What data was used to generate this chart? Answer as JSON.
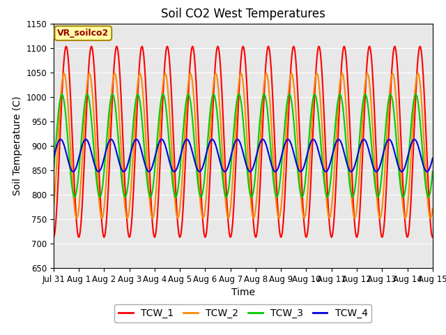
{
  "title": "Soil CO2 West Temperatures",
  "xlabel": "Time",
  "ylabel": "Soil Temperature (C)",
  "ylim": [
    650,
    1150
  ],
  "yticks": [
    650,
    700,
    750,
    800,
    850,
    900,
    950,
    1000,
    1050,
    1100,
    1150
  ],
  "x_tick_labels": [
    "Jul 31",
    "Aug 1",
    "Aug 2",
    "Aug 3",
    "Aug 4",
    "Aug 5",
    "Aug 6",
    "Aug 7",
    "Aug 8",
    "Aug 9",
    "Aug 10",
    "Aug 11",
    "Aug 12",
    "Aug 13",
    "Aug 14",
    "Aug 15"
  ],
  "series": [
    {
      "name": "TCW_1",
      "color": "#ff0000",
      "amplitude": 195,
      "mean": 908,
      "period": 1.0,
      "phase_deg": -90
    },
    {
      "name": "TCW_2",
      "color": "#ff8800",
      "amplitude": 148,
      "mean": 900,
      "period": 1.0,
      "phase_deg": -60
    },
    {
      "name": "TCW_3",
      "color": "#00cc00",
      "amplitude": 105,
      "mean": 900,
      "period": 1.0,
      "phase_deg": -30
    },
    {
      "name": "TCW_4",
      "color": "#0000dd",
      "amplitude": 33,
      "mean": 880,
      "period": 1.0,
      "phase_deg": -10
    }
  ],
  "annotation_text": "VR_soilco2",
  "annotation_bg": "#ffffaa",
  "annotation_border": "#aa8800",
  "bg_color": "#e8e8e8",
  "grid_color": "#d0d0d0",
  "title_fontsize": 12,
  "axis_fontsize": 10,
  "tick_fontsize": 8.5,
  "legend_fontsize": 10,
  "linewidth": 1.5
}
